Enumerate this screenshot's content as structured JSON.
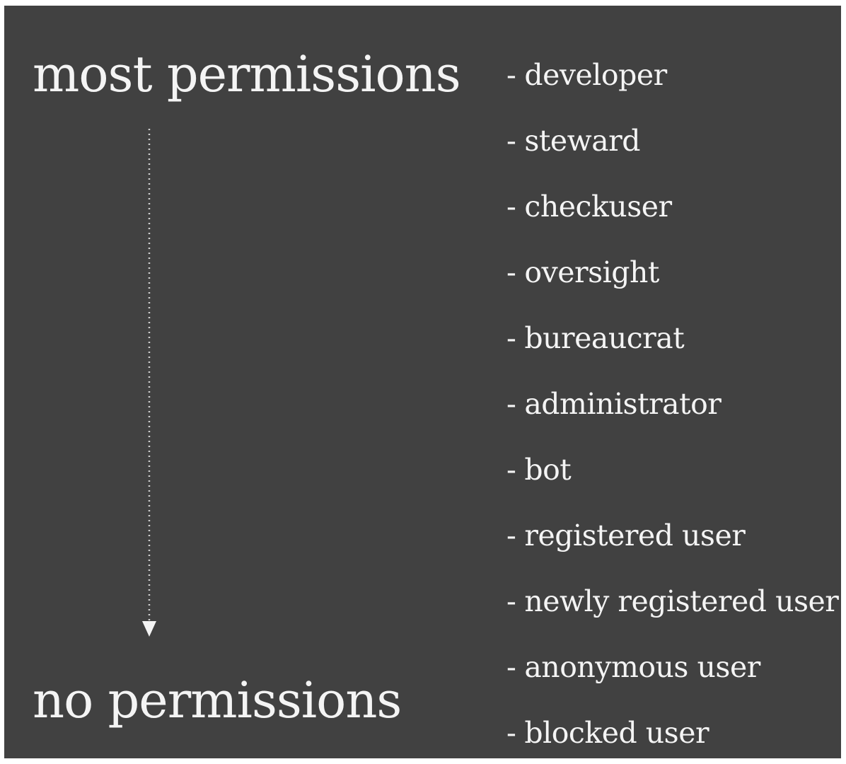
{
  "diagram": {
    "top_label": "most permissions",
    "bottom_label": "no permissions",
    "bullet": "-",
    "roles": [
      "developer",
      "steward",
      "checkuser",
      "oversight",
      "bureaucrat",
      "administrator",
      "bot",
      "registered user",
      "newly registered user",
      "anonymous user",
      "blocked user"
    ],
    "colors": {
      "background": "#414141",
      "text": "#f4f4f4",
      "frame": "#ffffff"
    }
  }
}
